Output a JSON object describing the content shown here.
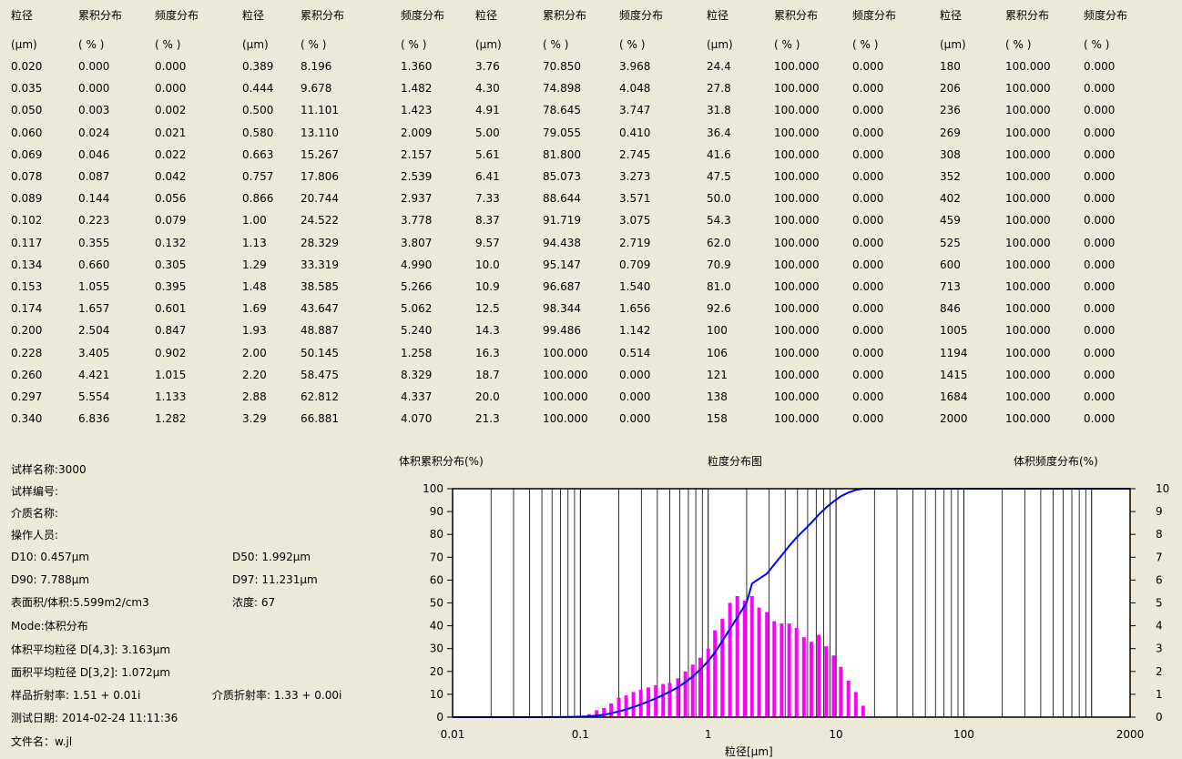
{
  "table": {
    "col_headers": [
      "粒径",
      "累积分布",
      "频度分布",
      "粒径",
      "累积分布",
      "频度分布",
      "粒径",
      "累积分布",
      "频度分布",
      "粒径",
      "累积分布",
      "频度分布",
      "粒径",
      "累积分布",
      "频度分布"
    ],
    "unit_row": [
      "(μm)",
      "( % )",
      "( % )",
      "(μm)",
      "( % )",
      "( % )",
      "(μm)",
      "( % )",
      "( % )",
      "(μm)",
      "( % )",
      "( % )",
      "(μm)",
      "( % )",
      "( % )"
    ],
    "rows": [
      [
        "0.020",
        "0.000",
        "0.000",
        "0.389",
        "8.196",
        "1.360",
        "3.76",
        "70.850",
        "3.968",
        "24.4",
        "100.000",
        "0.000",
        "180",
        "100.000",
        "0.000"
      ],
      [
        "0.035",
        "0.000",
        "0.000",
        "0.444",
        "9.678",
        "1.482",
        "4.30",
        "74.898",
        "4.048",
        "27.8",
        "100.000",
        "0.000",
        "206",
        "100.000",
        "0.000"
      ],
      [
        "0.050",
        "0.003",
        "0.002",
        "0.500",
        "11.101",
        "1.423",
        "4.91",
        "78.645",
        "3.747",
        "31.8",
        "100.000",
        "0.000",
        "236",
        "100.000",
        "0.000"
      ],
      [
        "0.060",
        "0.024",
        "0.021",
        "0.580",
        "13.110",
        "2.009",
        "5.00",
        "79.055",
        "0.410",
        "36.4",
        "100.000",
        "0.000",
        "269",
        "100.000",
        "0.000"
      ],
      [
        "0.069",
        "0.046",
        "0.022",
        "0.663",
        "15.267",
        "2.157",
        "5.61",
        "81.800",
        "2.745",
        "41.6",
        "100.000",
        "0.000",
        "308",
        "100.000",
        "0.000"
      ],
      [
        "0.078",
        "0.087",
        "0.042",
        "0.757",
        "17.806",
        "2.539",
        "6.41",
        "85.073",
        "3.273",
        "47.5",
        "100.000",
        "0.000",
        "352",
        "100.000",
        "0.000"
      ],
      [
        "0.089",
        "0.144",
        "0.056",
        "0.866",
        "20.744",
        "2.937",
        "7.33",
        "88.644",
        "3.571",
        "50.0",
        "100.000",
        "0.000",
        "402",
        "100.000",
        "0.000"
      ],
      [
        "0.102",
        "0.223",
        "0.079",
        "1.00",
        "24.522",
        "3.778",
        "8.37",
        "91.719",
        "3.075",
        "54.3",
        "100.000",
        "0.000",
        "459",
        "100.000",
        "0.000"
      ],
      [
        "0.117",
        "0.355",
        "0.132",
        "1.13",
        "28.329",
        "3.807",
        "9.57",
        "94.438",
        "2.719",
        "62.0",
        "100.000",
        "0.000",
        "525",
        "100.000",
        "0.000"
      ],
      [
        "0.134",
        "0.660",
        "0.305",
        "1.29",
        "33.319",
        "4.990",
        "10.0",
        "95.147",
        "0.709",
        "70.9",
        "100.000",
        "0.000",
        "600",
        "100.000",
        "0.000"
      ],
      [
        "0.153",
        "1.055",
        "0.395",
        "1.48",
        "38.585",
        "5.266",
        "10.9",
        "96.687",
        "1.540",
        "81.0",
        "100.000",
        "0.000",
        "713",
        "100.000",
        "0.000"
      ],
      [
        "0.174",
        "1.657",
        "0.601",
        "1.69",
        "43.647",
        "5.062",
        "12.5",
        "98.344",
        "1.656",
        "92.6",
        "100.000",
        "0.000",
        "846",
        "100.000",
        "0.000"
      ],
      [
        "0.200",
        "2.504",
        "0.847",
        "1.93",
        "48.887",
        "5.240",
        "14.3",
        "99.486",
        "1.142",
        "100",
        "100.000",
        "0.000",
        "1005",
        "100.000",
        "0.000"
      ],
      [
        "0.228",
        "3.405",
        "0.902",
        "2.00",
        "50.145",
        "1.258",
        "16.3",
        "100.000",
        "0.514",
        "106",
        "100.000",
        "0.000",
        "1194",
        "100.000",
        "0.000"
      ],
      [
        "0.260",
        "4.421",
        "1.015",
        "2.20",
        "58.475",
        "8.329",
        "18.7",
        "100.000",
        "0.000",
        "121",
        "100.000",
        "0.000",
        "1415",
        "100.000",
        "0.000"
      ],
      [
        "0.297",
        "5.554",
        "1.133",
        "2.88",
        "62.812",
        "4.337",
        "20.0",
        "100.000",
        "0.000",
        "138",
        "100.000",
        "0.000",
        "1684",
        "100.000",
        "0.000"
      ],
      [
        "0.340",
        "6.836",
        "1.282",
        "3.29",
        "66.881",
        "4.070",
        "21.3",
        "100.000",
        "0.000",
        "158",
        "100.000",
        "0.000",
        "2000",
        "100.000",
        "0.000"
      ]
    ]
  },
  "info": {
    "sample_name": "试样名称:3000",
    "sample_no": "试样编号:",
    "medium_name": "介质名称:",
    "operator": "操作人员:",
    "d10": "D10:  0.457μm",
    "d50": "D50:  1.992μm",
    "d90": "D90:  7.788μm",
    "d97": "D97:  11.231μm",
    "surface": "表面积/体积:5.599m2/cm3",
    "concentration": "浓度:   67",
    "mode": "Mode:体积分布",
    "d43": "体积平均粒径 D[4,3]: 3.163μm",
    "d32": "面积平均粒径 D[3,2]: 1.072μm",
    "sample_ri": "样品折射率: 1.51 + 0.01i",
    "medium_ri": "介质折射率: 1.33 + 0.00i",
    "test_date": "测试日期:  2014-02-24 11:11:36",
    "file_name": "文件名：w.jl"
  },
  "chart_data": {
    "type": "bar",
    "title": "粒度分布图",
    "ylabel_left": "体积累积分布(%)",
    "ylabel_right": "体积频度分布(%)",
    "xlabel": "粒径[μm]",
    "x_scale": "log",
    "xlim": [
      0.01,
      2000
    ],
    "x_ticks": [
      "0.01",
      "0.1",
      "1",
      "10",
      "100",
      "2000"
    ],
    "ylim_left": [
      0,
      100
    ],
    "ylim_right": [
      0,
      10
    ],
    "y_ticks_left": [
      "0",
      "10",
      "20",
      "30",
      "40",
      "50",
      "60",
      "70",
      "80",
      "90",
      "100"
    ],
    "y_ticks_right": [
      "0",
      "1",
      "2",
      "3",
      "4",
      "5",
      "6",
      "7",
      "8",
      "9",
      "10"
    ],
    "grid": true,
    "colors": {
      "cumulative": "#0000ff",
      "frequency": "#ff00ff"
    },
    "series": [
      {
        "name": "体积累积分布(%)",
        "axis": "left",
        "kind": "line",
        "x": [
          0.02,
          0.035,
          0.05,
          0.06,
          0.069,
          0.078,
          0.089,
          0.102,
          0.117,
          0.134,
          0.153,
          0.174,
          0.2,
          0.228,
          0.26,
          0.297,
          0.34,
          0.389,
          0.444,
          0.5,
          0.58,
          0.663,
          0.757,
          0.866,
          1.0,
          1.13,
          1.29,
          1.48,
          1.69,
          1.93,
          2.0,
          2.2,
          2.88,
          3.29,
          3.76,
          4.3,
          4.91,
          5.0,
          5.61,
          6.41,
          7.33,
          8.37,
          9.57,
          10.0,
          10.9,
          12.5,
          14.3,
          16.3,
          18.7,
          20.0,
          2000
        ],
        "y": [
          0,
          0,
          0.003,
          0.024,
          0.046,
          0.087,
          0.144,
          0.223,
          0.355,
          0.66,
          1.055,
          1.657,
          2.504,
          3.405,
          4.421,
          5.554,
          6.836,
          8.196,
          9.678,
          11.101,
          13.11,
          15.267,
          17.806,
          20.744,
          24.522,
          28.329,
          33.319,
          38.585,
          43.647,
          48.887,
          50.145,
          58.475,
          62.812,
          66.881,
          70.85,
          74.898,
          78.645,
          79.055,
          81.8,
          85.073,
          88.644,
          91.719,
          94.438,
          95.147,
          96.687,
          98.344,
          99.486,
          100,
          100,
          100,
          100
        ]
      },
      {
        "name": "体积频度分布(%)",
        "axis": "right",
        "kind": "bar",
        "x": [
          0.117,
          0.134,
          0.153,
          0.174,
          0.2,
          0.228,
          0.26,
          0.297,
          0.34,
          0.389,
          0.444,
          0.5,
          0.58,
          0.663,
          0.757,
          0.866,
          1.0,
          1.13,
          1.29,
          1.48,
          1.69,
          1.93,
          2.2,
          2.5,
          2.88,
          3.29,
          3.76,
          4.3,
          4.91,
          5.61,
          6.41,
          7.33,
          8.37,
          9.57,
          10.9,
          12.5,
          14.3,
          16.3
        ],
        "y": [
          0.13,
          0.3,
          0.4,
          0.6,
          0.85,
          0.95,
          1.1,
          1.2,
          1.3,
          1.4,
          1.45,
          1.5,
          1.7,
          2.0,
          2.3,
          2.6,
          3.0,
          3.8,
          4.3,
          5.0,
          5.3,
          5.1,
          5.3,
          4.8,
          4.6,
          4.2,
          4.1,
          4.1,
          3.9,
          3.5,
          3.3,
          3.6,
          3.1,
          2.7,
          2.2,
          1.6,
          1.1,
          0.5
        ]
      }
    ]
  }
}
